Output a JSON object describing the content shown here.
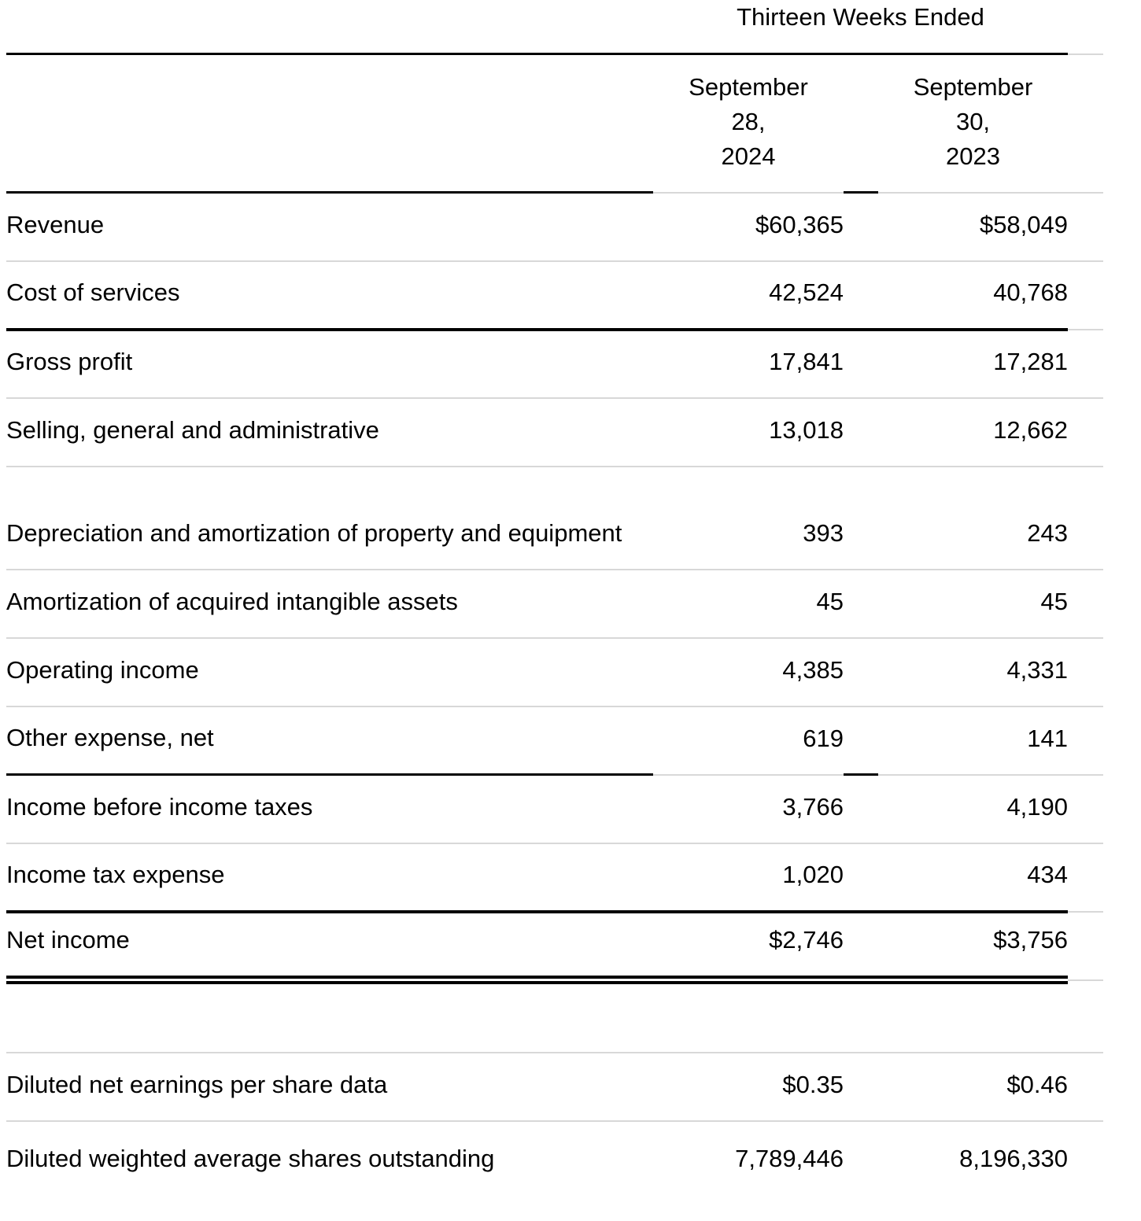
{
  "statement": {
    "period_header": "Thirteen Weeks Ended",
    "date_columns": [
      {
        "lines": [
          "September",
          "28,",
          "2024"
        ]
      },
      {
        "lines": [
          "September",
          "30,",
          "2023"
        ]
      }
    ],
    "rows": [
      {
        "label": "Revenue",
        "v2024": "$60,365",
        "v2023": "$58,049"
      },
      {
        "label": "Cost of services",
        "v2024": "42,524",
        "v2023": "40,768"
      },
      {
        "label": "Gross profit",
        "v2024": "17,841",
        "v2023": "17,281"
      },
      {
        "label": "Selling, general and administrative",
        "v2024": "13,018",
        "v2023": "12,662"
      },
      {
        "label": "Depreciation and amortization of property and equipment",
        "v2024": "393",
        "v2023": "243"
      },
      {
        "label": "Amortization of acquired intangible assets",
        "v2024": "45",
        "v2023": "45"
      },
      {
        "label": "Operating income",
        "v2024": "4,385",
        "v2023": "4,331"
      },
      {
        "label": "Other expense, net",
        "v2024": "619",
        "v2023": "141"
      },
      {
        "label": "Income before income taxes",
        "v2024": "3,766",
        "v2023": "4,190"
      },
      {
        "label": "Income tax expense",
        "v2024": "1,020",
        "v2023": "434"
      },
      {
        "label": "Net income",
        "v2024": "$2,746",
        "v2023": "$3,756"
      }
    ],
    "per_share_rows": [
      {
        "label": "Diluted net earnings per share data",
        "v2024": "$0.35",
        "v2023": "$0.46"
      },
      {
        "label": "Diluted weighted average shares outstanding",
        "v2024": "7,789,446",
        "v2023": "8,196,330"
      }
    ],
    "colors": {
      "text": "#000000",
      "rule_black": "#000000",
      "rule_gray": "#d8d8d8",
      "background": "#ffffff"
    }
  }
}
